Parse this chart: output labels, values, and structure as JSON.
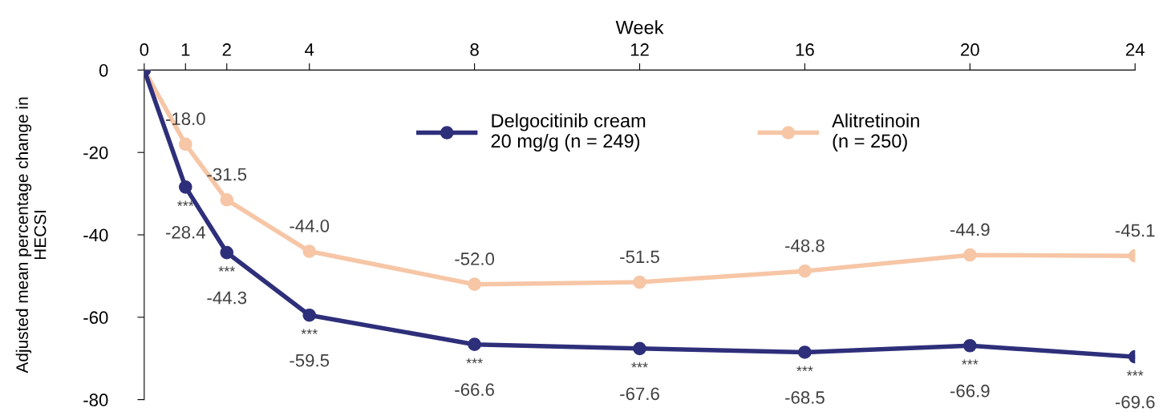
{
  "chart_data": {
    "type": "line",
    "xlabel": "Week",
    "ylabel": "Adjusted mean percentage change in\nHECSI",
    "x": [
      0,
      1,
      2,
      4,
      8,
      12,
      16,
      20,
      24
    ],
    "xlim": [
      0,
      24
    ],
    "xticks": [
      0,
      1,
      2,
      4,
      8,
      12,
      16,
      20,
      24
    ],
    "ylim": [
      -80,
      0
    ],
    "yticks": [
      -80,
      -60,
      -40,
      -20,
      0
    ],
    "series": [
      {
        "name": "Delgocitinib cream\n20 mg/g (n = 249)",
        "color": "#2e2f7a",
        "values": [
          0,
          -28.4,
          -44.3,
          -59.5,
          -66.6,
          -67.6,
          -68.5,
          -66.9,
          -69.6
        ],
        "value_labels": [
          null,
          "-28.4",
          "-44.3",
          "-59.5",
          "-66.6",
          "-67.6",
          "-68.5",
          "-66.9",
          "-69.6"
        ]
      },
      {
        "name": "Alitretinoin\n(n = 250)",
        "color": "#f6c6a6",
        "values": [
          0,
          -18.0,
          -31.5,
          -44.0,
          -52.0,
          -51.5,
          -48.8,
          -44.9,
          -45.1
        ],
        "value_labels": [
          null,
          "-18.0",
          "-31.5",
          "-44.0",
          "-52.0",
          "-51.5",
          "-48.8",
          "-44.9",
          "-45.1"
        ]
      }
    ],
    "annotations": [
      {
        "text": "***",
        "x": 1,
        "y": -28.4
      },
      {
        "text": "***",
        "x": 2,
        "y": -44.3
      },
      {
        "text": "***",
        "x": 4,
        "y": -59.5
      },
      {
        "text": "***",
        "x": 8,
        "y": -66.6
      },
      {
        "text": "***",
        "x": 12,
        "y": -67.6
      },
      {
        "text": "***",
        "x": 16,
        "y": -68.5
      },
      {
        "text": "***",
        "x": 20,
        "y": -66.9
      },
      {
        "text": "***",
        "x": 24,
        "y": -69.6
      }
    ],
    "marker": "circle",
    "line_style": "solid",
    "legend": "top",
    "grid": false
  }
}
